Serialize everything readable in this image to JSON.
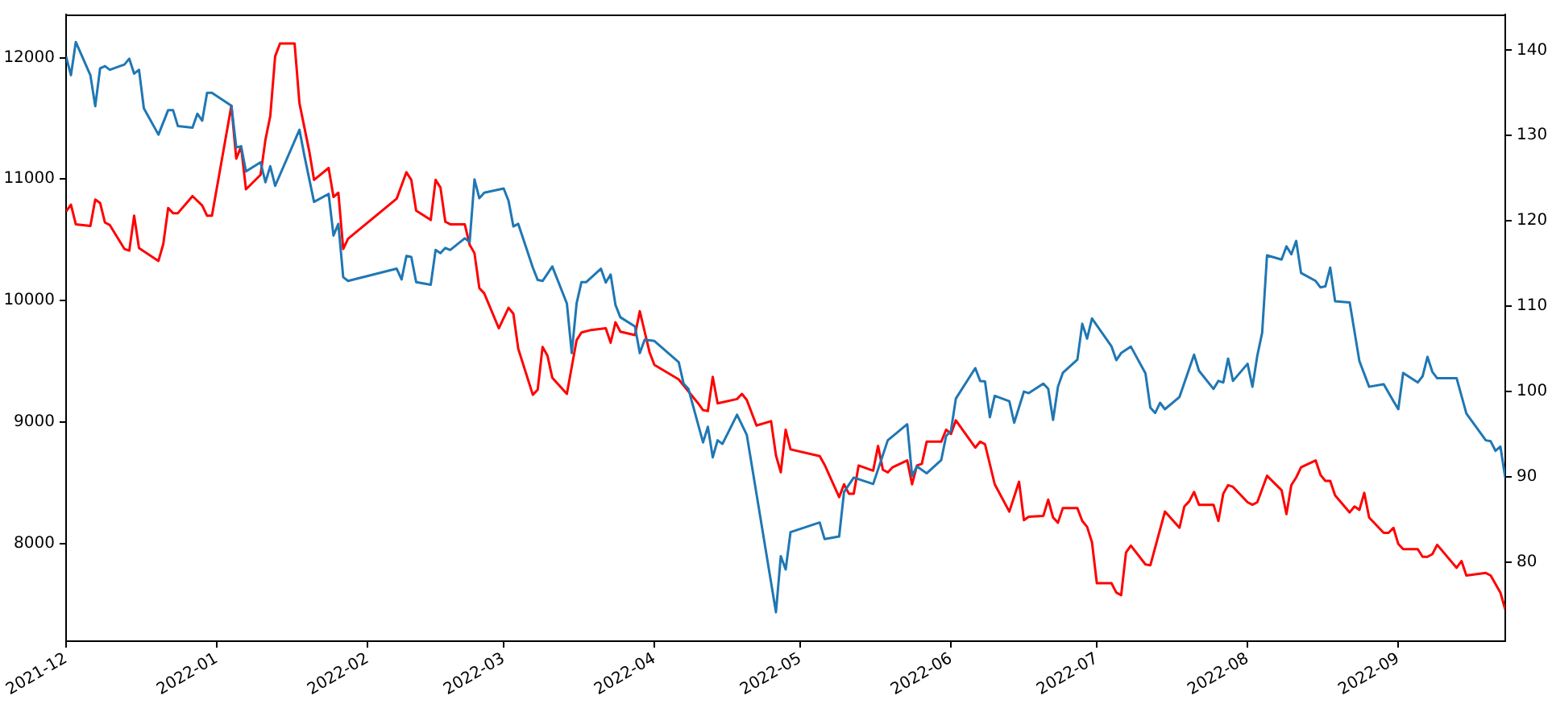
{
  "chart_data": {
    "type": "line",
    "xlim": [
      "2021-12-01",
      "2022-09-23"
    ],
    "xticks": [
      {
        "value": "2021-12-01",
        "label": "2021-12"
      },
      {
        "value": "2022-01-01",
        "label": "2022-01"
      },
      {
        "value": "2022-02-01",
        "label": "2022-02"
      },
      {
        "value": "2022-03-01",
        "label": "2022-03"
      },
      {
        "value": "2022-04-01",
        "label": "2022-04"
      },
      {
        "value": "2022-05-01",
        "label": "2022-05"
      },
      {
        "value": "2022-06-01",
        "label": "2022-06"
      },
      {
        "value": "2022-07-01",
        "label": "2022-07"
      },
      {
        "value": "2022-08-01",
        "label": "2022-08"
      },
      {
        "value": "2022-09-01",
        "label": "2022-09"
      }
    ],
    "ylim": [
      7195,
      12355
    ],
    "yticks": [
      8000,
      9000,
      10000,
      11000,
      12000
    ],
    "y2lim": [
      70.7,
      144.2
    ],
    "y2ticks": [
      80,
      90,
      100,
      110,
      120,
      130,
      140
    ],
    "grid": false,
    "line_style": "solid",
    "marker": "none",
    "series": [
      {
        "color": "#1f77b4",
        "x": [
          "2021-12-01",
          "2021-12-02",
          "2021-12-03",
          "2021-12-06",
          "2021-12-07",
          "2021-12-08",
          "2021-12-09",
          "2021-12-10",
          "2021-12-13",
          "2021-12-14",
          "2021-12-15",
          "2021-12-16",
          "2021-12-17",
          "2021-12-20",
          "2021-12-22",
          "2021-12-23",
          "2021-12-24",
          "2021-12-27",
          "2021-12-28",
          "2021-12-29",
          "2021-12-30",
          "2021-12-31",
          "2022-01-04",
          "2022-01-05",
          "2022-01-06",
          "2022-01-07",
          "2022-01-10",
          "2022-01-11",
          "2022-01-12",
          "2022-01-13",
          "2022-01-18",
          "2022-01-19",
          "2022-01-21",
          "2022-01-24",
          "2022-01-25",
          "2022-01-26",
          "2022-01-27",
          "2022-01-28",
          "2022-02-07",
          "2022-02-08",
          "2022-02-09",
          "2022-02-10",
          "2022-02-11",
          "2022-02-14",
          "2022-02-15",
          "2022-02-16",
          "2022-02-17",
          "2022-02-18",
          "2022-02-21",
          "2022-02-22",
          "2022-02-23",
          "2022-02-24",
          "2022-02-25",
          "2022-03-01",
          "2022-03-02",
          "2022-03-03",
          "2022-03-04",
          "2022-03-07",
          "2022-03-08",
          "2022-03-09",
          "2022-03-11",
          "2022-03-14",
          "2022-03-15",
          "2022-03-16",
          "2022-03-17",
          "2022-03-18",
          "2022-03-21",
          "2022-03-22",
          "2022-03-23",
          "2022-03-24",
          "2022-03-25",
          "2022-03-28",
          "2022-03-29",
          "2022-03-30",
          "2022-04-01",
          "2022-04-06",
          "2022-04-07",
          "2022-04-08",
          "2022-04-11",
          "2022-04-12",
          "2022-04-13",
          "2022-04-14",
          "2022-04-15",
          "2022-04-18",
          "2022-04-20",
          "2022-04-26",
          "2022-04-27",
          "2022-04-28",
          "2022-04-29",
          "2022-05-05",
          "2022-05-06",
          "2022-05-09",
          "2022-05-10",
          "2022-05-12",
          "2022-05-16",
          "2022-05-19",
          "2022-05-23",
          "2022-05-24",
          "2022-05-25",
          "2022-05-27",
          "2022-05-30",
          "2022-05-31",
          "2022-06-01",
          "2022-06-02",
          "2022-06-06",
          "2022-06-07",
          "2022-06-08",
          "2022-06-09",
          "2022-06-10",
          "2022-06-13",
          "2022-06-14",
          "2022-06-16",
          "2022-06-17",
          "2022-06-20",
          "2022-06-21",
          "2022-06-22",
          "2022-06-23",
          "2022-06-24",
          "2022-06-27",
          "2022-06-28",
          "2022-06-29",
          "2022-06-30",
          "2022-07-04",
          "2022-07-05",
          "2022-07-06",
          "2022-07-08",
          "2022-07-11",
          "2022-07-12",
          "2022-07-13",
          "2022-07-14",
          "2022-07-15",
          "2022-07-18",
          "2022-07-21",
          "2022-07-22",
          "2022-07-25",
          "2022-07-26",
          "2022-07-27",
          "2022-07-28",
          "2022-07-29",
          "2022-08-01",
          "2022-08-02",
          "2022-08-03",
          "2022-08-04",
          "2022-08-05",
          "2022-08-08",
          "2022-08-09",
          "2022-08-10",
          "2022-08-11",
          "2022-08-12",
          "2022-08-15",
          "2022-08-16",
          "2022-08-17",
          "2022-08-18",
          "2022-08-19",
          "2022-08-22",
          "2022-08-24",
          "2022-08-26",
          "2022-08-29",
          "2022-08-31",
          "2022-09-01",
          "2022-09-02",
          "2022-09-05",
          "2022-09-06",
          "2022-09-07",
          "2022-09-08",
          "2022-09-09",
          "2022-09-13",
          "2022-09-15",
          "2022-09-19",
          "2022-09-20",
          "2022-09-21",
          "2022-09-22",
          "2022-09-23"
        ],
        "values": [
          12009,
          11855,
          12128,
          11855,
          11600,
          11912,
          11930,
          11900,
          11943,
          11991,
          11868,
          11900,
          11582,
          11366,
          11568,
          11568,
          11436,
          11423,
          11538,
          11481,
          11710,
          11710,
          11604,
          11261,
          11270,
          11063,
          11138,
          10974,
          11106,
          10944,
          11406,
          11195,
          10812,
          10878,
          10535,
          10631,
          10192,
          10161,
          10262,
          10174,
          10367,
          10359,
          10152,
          10130,
          10416,
          10390,
          10433,
          10416,
          10512,
          10482,
          10997,
          10842,
          10887,
          10922,
          10821,
          10610,
          10631,
          10271,
          10169,
          10161,
          10280,
          9976,
          9567,
          9976,
          10152,
          10152,
          10262,
          10148,
          10214,
          9963,
          9862,
          9786,
          9567,
          9677,
          9667,
          9492,
          9316,
          9272,
          8832,
          8960,
          8709,
          8849,
          8819,
          9060,
          8894,
          7433,
          7895,
          7785,
          8093,
          8172,
          8036,
          8057,
          8423,
          8542,
          8489,
          8849,
          8981,
          8555,
          8634,
          8577,
          8687,
          8885,
          8928,
          9192,
          9443,
          9338,
          9334,
          9039,
          9215,
          9171,
          8994,
          9250,
          9237,
          9316,
          9272,
          9017,
          9290,
          9404,
          9514,
          9809,
          9686,
          9852,
          9624,
          9509,
          9567,
          9620,
          9400,
          9118,
          9074,
          9158,
          9105,
          9206,
          9554,
          9422,
          9272,
          9338,
          9325,
          9522,
          9338,
          9479,
          9290,
          9545,
          9734,
          10372,
          10337,
          10446,
          10380,
          10491,
          10227,
          10161,
          10108,
          10116,
          10271,
          9994,
          9984,
          9501,
          9290,
          9311,
          9171,
          9105,
          9404,
          9325,
          9377,
          9536,
          9413,
          9360,
          9360,
          9070,
          8849,
          8841,
          8762,
          8797,
          8542
        ]
      },
      {
        "color": "#ff0000",
        "axis": "y2",
        "x": [
          "2021-12-01",
          "2021-12-02",
          "2021-12-03",
          "2021-12-06",
          "2021-12-07",
          "2021-12-08",
          "2021-12-09",
          "2021-12-10",
          "2021-12-13",
          "2021-12-14",
          "2021-12-15",
          "2021-12-16",
          "2021-12-20",
          "2021-12-21",
          "2021-12-22",
          "2021-12-23",
          "2021-12-24",
          "2021-12-27",
          "2021-12-29",
          "2021-12-30",
          "2021-12-31",
          "2022-01-04",
          "2022-01-05",
          "2022-01-06",
          "2022-01-07",
          "2022-01-10",
          "2022-01-11",
          "2022-01-12",
          "2022-01-13",
          "2022-01-14",
          "2022-01-17",
          "2022-01-18",
          "2022-01-20",
          "2022-01-21",
          "2022-01-24",
          "2022-01-25",
          "2022-01-26",
          "2022-01-27",
          "2022-01-28",
          "2022-02-07",
          "2022-02-09",
          "2022-02-10",
          "2022-02-11",
          "2022-02-14",
          "2022-02-15",
          "2022-02-16",
          "2022-02-17",
          "2022-02-18",
          "2022-02-21",
          "2022-02-22",
          "2022-02-23",
          "2022-02-24",
          "2022-02-25",
          "2022-02-28",
          "2022-03-02",
          "2022-03-03",
          "2022-03-04",
          "2022-03-07",
          "2022-03-08",
          "2022-03-09",
          "2022-03-10",
          "2022-03-11",
          "2022-03-14",
          "2022-03-16",
          "2022-03-17",
          "2022-03-19",
          "2022-03-22",
          "2022-03-23",
          "2022-03-24",
          "2022-03-25",
          "2022-03-28",
          "2022-03-29",
          "2022-03-30",
          "2022-03-31",
          "2022-04-01",
          "2022-04-06",
          "2022-04-10",
          "2022-04-11",
          "2022-04-12",
          "2022-04-13",
          "2022-04-14",
          "2022-04-18",
          "2022-04-19",
          "2022-04-20",
          "2022-04-22",
          "2022-04-25",
          "2022-04-26",
          "2022-04-27",
          "2022-04-28",
          "2022-04-29",
          "2022-05-05",
          "2022-05-06",
          "2022-05-09",
          "2022-05-10",
          "2022-05-11",
          "2022-05-12",
          "2022-05-13",
          "2022-05-16",
          "2022-05-17",
          "2022-05-18",
          "2022-05-19",
          "2022-05-20",
          "2022-05-23",
          "2022-05-24",
          "2022-05-25",
          "2022-05-26",
          "2022-05-27",
          "2022-05-30",
          "2022-05-31",
          "2022-06-01",
          "2022-06-02",
          "2022-06-06",
          "2022-06-07",
          "2022-06-08",
          "2022-06-10",
          "2022-06-13",
          "2022-06-15",
          "2022-06-16",
          "2022-06-17",
          "2022-06-20",
          "2022-06-21",
          "2022-06-22",
          "2022-06-23",
          "2022-06-24",
          "2022-06-27",
          "2022-06-28",
          "2022-06-29",
          "2022-06-30",
          "2022-07-01",
          "2022-07-04",
          "2022-07-05",
          "2022-07-06",
          "2022-07-07",
          "2022-07-08",
          "2022-07-11",
          "2022-07-12",
          "2022-07-15",
          "2022-07-18",
          "2022-07-19",
          "2022-07-20",
          "2022-07-21",
          "2022-07-22",
          "2022-07-25",
          "2022-07-26",
          "2022-07-27",
          "2022-07-28",
          "2022-07-29",
          "2022-08-01",
          "2022-08-02",
          "2022-08-03",
          "2022-08-05",
          "2022-08-08",
          "2022-08-09",
          "2022-08-10",
          "2022-08-11",
          "2022-08-12",
          "2022-08-15",
          "2022-08-16",
          "2022-08-17",
          "2022-08-18",
          "2022-08-19",
          "2022-08-22",
          "2022-08-23",
          "2022-08-24",
          "2022-08-25",
          "2022-08-26",
          "2022-08-29",
          "2022-08-30",
          "2022-08-31",
          "2022-09-01",
          "2022-09-02",
          "2022-09-05",
          "2022-09-06",
          "2022-09-07",
          "2022-09-08",
          "2022-09-09",
          "2022-09-13",
          "2022-09-14",
          "2022-09-15",
          "2022-09-19",
          "2022-09-20",
          "2022-09-22",
          "2022-09-23"
        ],
        "values": [
          121.1,
          121.9,
          119.6,
          119.4,
          122.5,
          122.1,
          119.8,
          119.5,
          116.7,
          116.5,
          120.6,
          116.8,
          115.3,
          117.3,
          121.5,
          120.9,
          120.9,
          122.9,
          121.8,
          120.6,
          120.6,
          133.5,
          127.3,
          128.7,
          123.7,
          125.4,
          129.5,
          132.3,
          139.3,
          140.8,
          140.8,
          133.8,
          128.2,
          124.8,
          126.2,
          122.8,
          123.3,
          116.7,
          117.9,
          122.6,
          125.7,
          124.8,
          121.2,
          120.1,
          124.8,
          123.9,
          119.9,
          119.6,
          119.6,
          117.2,
          116.2,
          112.1,
          111.5,
          107.4,
          109.8,
          109.1,
          105.0,
          99.6,
          100.2,
          105.2,
          104.2,
          101.6,
          99.7,
          106.0,
          106.9,
          107.2,
          107.4,
          105.7,
          108.1,
          107.0,
          106.6,
          109.4,
          107.0,
          104.6,
          103.1,
          101.4,
          98.6,
          97.8,
          97.7,
          101.7,
          98.6,
          99.1,
          99.7,
          99.0,
          96.0,
          96.5,
          92.5,
          90.5,
          95.5,
          93.2,
          92.4,
          91.4,
          87.6,
          89.1,
          88.0,
          88.0,
          91.3,
          90.7,
          93.6,
          90.8,
          90.5,
          91.1,
          91.9,
          89.1,
          91.3,
          91.5,
          94.1,
          94.1,
          95.5,
          95.0,
          96.6,
          93.4,
          94.1,
          93.8,
          89.1,
          85.9,
          89.4,
          84.9,
          85.3,
          85.4,
          87.3,
          85.2,
          84.6,
          86.3,
          86.3,
          84.8,
          84.1,
          82.3,
          77.5,
          77.5,
          76.4,
          76.1,
          81.1,
          81.9,
          79.7,
          79.6,
          85.9,
          84.0,
          86.5,
          87.1,
          88.2,
          86.7,
          86.7,
          84.8,
          88.0,
          89.0,
          88.8,
          87.0,
          86.7,
          87.0,
          90.1,
          88.4,
          85.6,
          89.0,
          89.9,
          91.1,
          91.9,
          90.2,
          89.5,
          89.5,
          87.8,
          85.8,
          86.5,
          86.1,
          88.1,
          85.2,
          83.4,
          83.4,
          84.0,
          82.1,
          81.5,
          81.5,
          80.6,
          80.6,
          80.9,
          82.0,
          79.3,
          80.1,
          78.4,
          78.7,
          78.4,
          76.4,
          74.4
        ]
      }
    ]
  }
}
